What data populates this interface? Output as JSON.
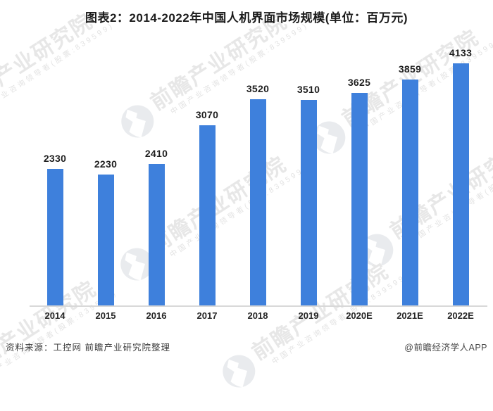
{
  "title": "图表2：2014-2022年中国人机界面市场规模(单位：百万元)",
  "chart_data": {
    "type": "bar",
    "title": "图表2：2014-2022年中国人机界面市场规模(单位：百万元)",
    "unit": "百万元",
    "categories": [
      "2014",
      "2015",
      "2016",
      "2017",
      "2018",
      "2019",
      "2020E",
      "2021E",
      "2022E"
    ],
    "values": [
      2330,
      2230,
      2410,
      3070,
      3520,
      3510,
      3625,
      3859,
      4133
    ],
    "xlabel": "",
    "ylabel": "",
    "ylim": [
      0,
      4500
    ],
    "grid": false,
    "legend": "none",
    "value_labels": true,
    "bar_color": "#3E80DC",
    "axis_line_color": "#d8d8d8"
  },
  "watermark": {
    "brand": "前瞻产业研究院",
    "tagline": "中国产业咨询领导者(股票:839599)",
    "logo_circle_color": "#e9ebee",
    "text_color": "#e7e7e7"
  },
  "footer": {
    "source": "资料来源：工控网 前瞻产业研究院整理",
    "credit": "@前瞻经济学人APP"
  }
}
